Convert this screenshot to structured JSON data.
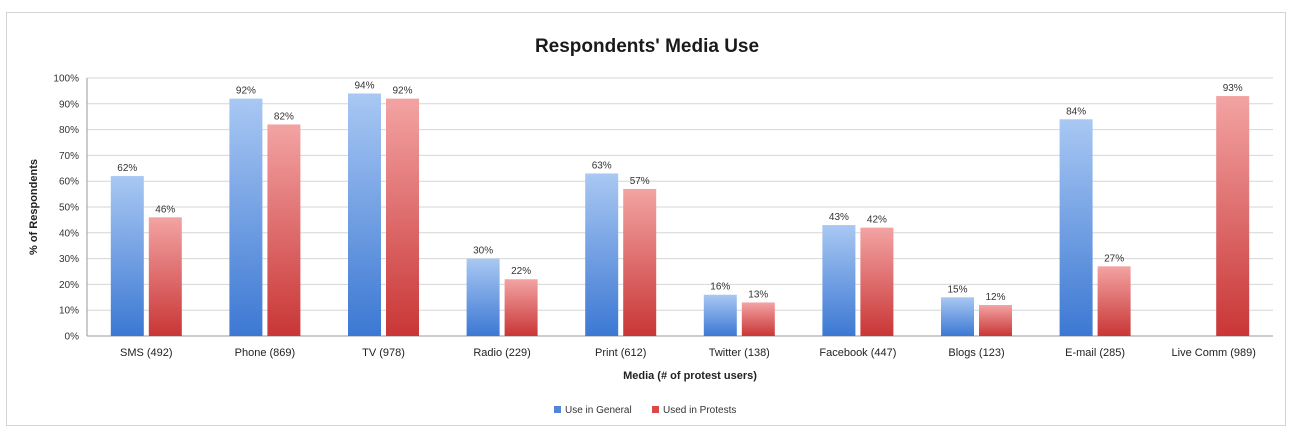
{
  "chart_data": {
    "type": "bar",
    "title": "Respondents' Media Use",
    "xlabel": "Media (# of protest users)",
    "ylabel": "% of Respondents",
    "ylim": [
      0,
      100
    ],
    "yticks": [
      "0%",
      "10%",
      "20%",
      "30%",
      "40%",
      "50%",
      "60%",
      "70%",
      "80%",
      "90%",
      "100%"
    ],
    "grid": true,
    "legend_position": "bottom",
    "categories": [
      "SMS (492)",
      "Phone (869)",
      "TV (978)",
      "Radio (229)",
      "Print (612)",
      "Twitter (138)",
      "Facebook (447)",
      "Blogs (123)",
      "E-mail (285)",
      "Live Comm (989)"
    ],
    "series": [
      {
        "name": "Use in General",
        "color": "#4f86d9",
        "values": [
          62,
          92,
          94,
          30,
          63,
          16,
          43,
          15,
          84,
          null
        ],
        "labels": [
          "62%",
          "92%",
          "94%",
          "30%",
          "63%",
          "16%",
          "43%",
          "15%",
          "84%",
          ""
        ]
      },
      {
        "name": "Used in Protests",
        "color": "#d9494a",
        "values": [
          46,
          82,
          92,
          22,
          57,
          13,
          42,
          12,
          27,
          93
        ],
        "labels": [
          "46%",
          "82%",
          "92%",
          "22%",
          "57%",
          "13%",
          "42%",
          "12%",
          "27%",
          "93%"
        ]
      }
    ]
  }
}
